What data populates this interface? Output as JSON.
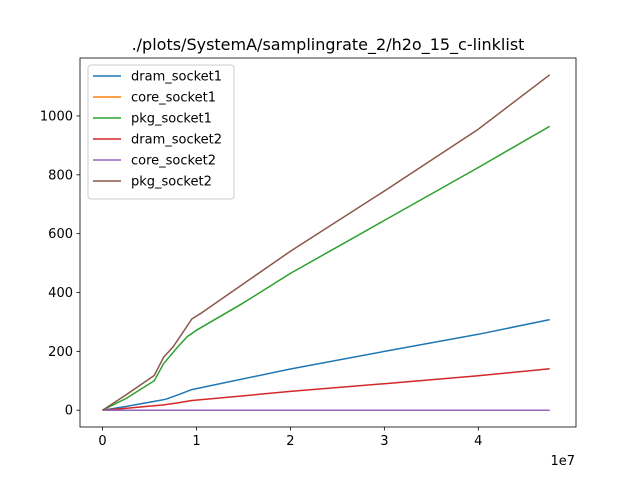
{
  "chart_data": {
    "type": "line",
    "title": "./plots/SystemA/samplingrate_2/h2o_15_c-linklist",
    "xlabel": "",
    "ylabel": "",
    "x_offset_label": "1e7",
    "xlim": [
      -2400000,
      50400000
    ],
    "ylim": [
      -57,
      1197
    ],
    "xticks": [
      0,
      10000000,
      20000000,
      30000000,
      40000000
    ],
    "xtick_labels": [
      "0",
      "1",
      "2",
      "3",
      "4"
    ],
    "yticks": [
      0,
      200,
      400,
      600,
      800,
      1000
    ],
    "ytick_labels": [
      "0",
      "200",
      "400",
      "600",
      "800",
      "1000"
    ],
    "grid": false,
    "legend_position": "upper-left",
    "series": [
      {
        "name": "dram_socket1",
        "color": "#1f77b4",
        "points": [
          [
            0,
            0
          ],
          [
            2000000,
            10
          ],
          [
            5500000,
            30
          ],
          [
            6700000,
            37
          ],
          [
            8000000,
            52
          ],
          [
            9500000,
            70
          ],
          [
            10500000,
            77
          ],
          [
            20000000,
            140
          ],
          [
            30000000,
            200
          ],
          [
            40000000,
            258
          ],
          [
            47600000,
            308
          ]
        ]
      },
      {
        "name": "core_socket1",
        "color": "#ff7f0e",
        "points": [
          [
            0,
            0
          ],
          [
            47600000,
            0
          ]
        ]
      },
      {
        "name": "pkg_socket1",
        "color": "#2ca02c",
        "points": [
          [
            0,
            0
          ],
          [
            2500000,
            40
          ],
          [
            5500000,
            100
          ],
          [
            6500000,
            158
          ],
          [
            8000000,
            215
          ],
          [
            9000000,
            250
          ],
          [
            10000000,
            272
          ],
          [
            15000000,
            365
          ],
          [
            20000000,
            465
          ],
          [
            30000000,
            645
          ],
          [
            40000000,
            825
          ],
          [
            47600000,
            965
          ]
        ]
      },
      {
        "name": "dram_socket2",
        "color": "#d62728",
        "points": [
          [
            0,
            0
          ],
          [
            3000000,
            8
          ],
          [
            6500000,
            18
          ],
          [
            8000000,
            25
          ],
          [
            9500000,
            33
          ],
          [
            11000000,
            37
          ],
          [
            20000000,
            64
          ],
          [
            30000000,
            90
          ],
          [
            40000000,
            117
          ],
          [
            47600000,
            141
          ]
        ]
      },
      {
        "name": "core_socket2",
        "color": "#9467bd",
        "points": [
          [
            0,
            0
          ],
          [
            47600000,
            0
          ]
        ]
      },
      {
        "name": "pkg_socket2",
        "color": "#8c564b",
        "points": [
          [
            0,
            0
          ],
          [
            2500000,
            52
          ],
          [
            5500000,
            118
          ],
          [
            6500000,
            180
          ],
          [
            7500000,
            215
          ],
          [
            8500000,
            262
          ],
          [
            9500000,
            310
          ],
          [
            10500000,
            330
          ],
          [
            15000000,
            430
          ],
          [
            20000000,
            540
          ],
          [
            30000000,
            745
          ],
          [
            40000000,
            955
          ],
          [
            47600000,
            1140
          ]
        ]
      }
    ]
  }
}
